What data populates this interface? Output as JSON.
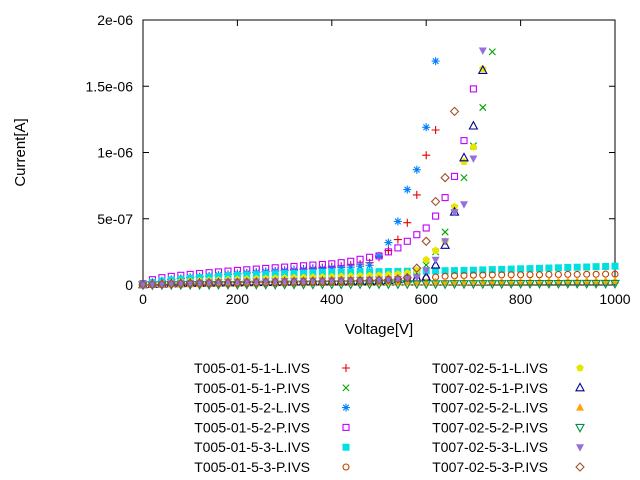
{
  "window": {
    "background": "#ffffff"
  },
  "chart_data": {
    "type": "scatter",
    "title": "",
    "xlabel": "Voltage[V]",
    "ylabel": "Current[A]",
    "xlim": [
      0,
      1000
    ],
    "ylim_amps": [
      0,
      2e-06
    ],
    "x_ticks": [
      0,
      200,
      400,
      600,
      800,
      1000
    ],
    "y_ticks": [
      {
        "v": 0,
        "label": "0"
      },
      {
        "v": 0.5,
        "label": "5e-07"
      },
      {
        "v": 1,
        "label": "1e-06"
      },
      {
        "v": 1.5,
        "label": "1.5e-06"
      },
      {
        "v": 2,
        "label": "2e-06"
      }
    ],
    "grid": false,
    "legend_position": "below plot, two columns",
    "current_values_unit": "microamps (multiply by 1e-6 for A)",
    "series": [
      {
        "name": "T005-01-5-1-L.IVS",
        "color": "#e60000",
        "marker": "plus",
        "v_start": 0,
        "v_step": 20,
        "i_microamps": [
          0.005,
          0.02,
          0.03,
          0.04,
          0.048,
          0.055,
          0.062,
          0.068,
          0.074,
          0.08,
          0.086,
          0.091,
          0.096,
          0.101,
          0.106,
          0.111,
          0.116,
          0.121,
          0.126,
          0.131,
          0.137,
          0.143,
          0.15,
          0.158,
          0.168,
          0.21,
          0.26,
          0.343,
          0.47,
          0.68,
          0.98,
          1.17
        ]
      },
      {
        "name": "T005-01-5-1-P.IVS",
        "color": "#00a400",
        "marker": "cross",
        "v_start": 0,
        "v_step": 20,
        "i_microamps": [
          0.002,
          0.004,
          0.006,
          0.008,
          0.01,
          0.012,
          0.014,
          0.016,
          0.018,
          0.02,
          0.021,
          0.022,
          0.023,
          0.024,
          0.025,
          0.026,
          0.027,
          0.028,
          0.029,
          0.03,
          0.032,
          0.034,
          0.036,
          0.038,
          0.04,
          0.045,
          0.055,
          0.065,
          0.075,
          0.09,
          0.15,
          0.25,
          0.4,
          0.58,
          0.81,
          1.05,
          1.34,
          1.76
        ]
      },
      {
        "name": "T005-01-5-2-L.IVS",
        "color": "#0080ff",
        "marker": "asterisk",
        "v_start": 0,
        "v_step": 20,
        "i_microamps": [
          0.005,
          0.02,
          0.032,
          0.042,
          0.05,
          0.057,
          0.063,
          0.069,
          0.075,
          0.08,
          0.085,
          0.09,
          0.095,
          0.1,
          0.104,
          0.108,
          0.112,
          0.116,
          0.12,
          0.124,
          0.128,
          0.131,
          0.134,
          0.142,
          0.149,
          0.22,
          0.32,
          0.48,
          0.72,
          0.87,
          1.19,
          1.69
        ]
      },
      {
        "name": "T005-01-5-2-P.IVS",
        "color": "#c000ff",
        "marker": "open-square",
        "v_start": 0,
        "v_step": 20,
        "i_microamps": [
          0.01,
          0.04,
          0.055,
          0.065,
          0.073,
          0.08,
          0.087,
          0.093,
          0.099,
          0.105,
          0.11,
          0.115,
          0.12,
          0.125,
          0.13,
          0.135,
          0.14,
          0.145,
          0.15,
          0.155,
          0.16,
          0.168,
          0.179,
          0.194,
          0.209,
          0.22,
          0.25,
          0.28,
          0.33,
          0.38,
          0.43,
          0.52,
          0.66,
          0.82,
          1.09,
          1.48
        ]
      },
      {
        "name": "T005-01-5-3-L.IVS",
        "color": "#00e0e0",
        "marker": "filled-square",
        "v_start": 0,
        "v_step": 20,
        "i_microamps": [
          0.005,
          0.02,
          0.03,
          0.038,
          0.044,
          0.05,
          0.055,
          0.06,
          0.064,
          0.068,
          0.072,
          0.075,
          0.078,
          0.081,
          0.084,
          0.086,
          0.088,
          0.09,
          0.092,
          0.094,
          0.096,
          0.097,
          0.098,
          0.099,
          0.1,
          0.101,
          0.102,
          0.103,
          0.104,
          0.105,
          0.106,
          0.107,
          0.108,
          0.109,
          0.11,
          0.112,
          0.114,
          0.116,
          0.118,
          0.12,
          0.122,
          0.124,
          0.126,
          0.128,
          0.13,
          0.132,
          0.134,
          0.136,
          0.138,
          0.14,
          0.142
        ]
      },
      {
        "name": "T005-01-5-3-P.IVS",
        "color": "#c04000",
        "marker": "open-circle",
        "v_start": 0,
        "v_step": 20,
        "i_microamps": [
          0.002,
          0.004,
          0.006,
          0.008,
          0.01,
          0.011,
          0.012,
          0.013,
          0.014,
          0.015,
          0.016,
          0.017,
          0.018,
          0.019,
          0.02,
          0.021,
          0.022,
          0.023,
          0.024,
          0.025,
          0.026,
          0.027,
          0.028,
          0.029,
          0.03,
          0.032,
          0.034,
          0.037,
          0.04,
          0.045,
          0.052,
          0.06,
          0.066,
          0.07,
          0.072,
          0.074,
          0.075,
          0.076,
          0.076,
          0.077,
          0.077,
          0.078,
          0.078,
          0.079,
          0.079,
          0.08,
          0.08,
          0.081,
          0.081,
          0.082,
          0.082
        ]
      },
      {
        "name": "T007-02-5-1-L.IVS",
        "color": "#e6e600",
        "marker": "filled-pentagon",
        "v_start": 0,
        "v_step": 20,
        "i_microamps": [
          0.005,
          0.01,
          0.015,
          0.02,
          0.024,
          0.028,
          0.031,
          0.034,
          0.037,
          0.04,
          0.042,
          0.044,
          0.046,
          0.048,
          0.05,
          0.052,
          0.054,
          0.056,
          0.058,
          0.06,
          0.062,
          0.064,
          0.066,
          0.068,
          0.07,
          0.073,
          0.077,
          0.082,
          0.09,
          0.11,
          0.19,
          0.26,
          0.33,
          0.59,
          0.93,
          1.04,
          1.63
        ]
      },
      {
        "name": "T007-02-5-1-P.IVS",
        "color": "#000090",
        "marker": "open-triangle-up",
        "v_start": 0,
        "v_step": 20,
        "i_microamps": [
          0.002,
          0.004,
          0.006,
          0.008,
          0.01,
          0.011,
          0.012,
          0.013,
          0.014,
          0.015,
          0.016,
          0.017,
          0.018,
          0.019,
          0.02,
          0.021,
          0.022,
          0.023,
          0.024,
          0.025,
          0.026,
          0.027,
          0.028,
          0.029,
          0.03,
          0.032,
          0.035,
          0.04,
          0.045,
          0.052,
          0.06,
          0.15,
          0.3,
          0.55,
          0.96,
          1.2,
          1.62
        ]
      },
      {
        "name": "T007-02-5-2-L.IVS",
        "color": "#ffa500",
        "marker": "filled-triangle-up",
        "v_start": 0,
        "v_step": 20,
        "i_microamps": [
          0.001,
          0.002,
          0.003,
          0.004,
          0.005,
          0.006,
          0.007,
          0.008,
          0.009,
          0.01,
          0.01,
          0.011,
          0.011,
          0.012,
          0.012,
          0.013,
          0.013,
          0.014,
          0.014,
          0.015,
          0.015,
          0.016,
          0.016,
          0.017,
          0.017,
          0.018,
          0.018,
          0.019,
          0.019,
          0.02,
          0.02,
          0.021,
          0.021,
          0.022,
          0.022,
          0.023,
          0.023,
          0.024,
          0.024,
          0.025,
          0.025,
          0.026,
          0.026,
          0.027,
          0.027,
          0.028,
          0.028,
          0.029,
          0.029,
          0.03,
          0.03
        ]
      },
      {
        "name": "T007-02-5-2-P.IVS",
        "color": "#009048",
        "marker": "open-triangle-down",
        "v_start": 0,
        "v_step": 20,
        "i_microamps": [
          0.001,
          0.001,
          0.002,
          0.002,
          0.002,
          0.003,
          0.003,
          0.003,
          0.004,
          0.004,
          0.004,
          0.005,
          0.005,
          0.005,
          0.005,
          0.006,
          0.006,
          0.006,
          0.006,
          0.007,
          0.007,
          0.007,
          0.007,
          0.008,
          0.008,
          0.008,
          0.008,
          0.008,
          0.009,
          0.009,
          0.009,
          0.009,
          0.009,
          0.01,
          0.01,
          0.01,
          0.01,
          0.01,
          0.01,
          0.011,
          0.011,
          0.011,
          0.011,
          0.011,
          0.011,
          0.012,
          0.012,
          0.012,
          0.012,
          0.012,
          0.012
        ]
      },
      {
        "name": "T007-02-5-3-L.IVS",
        "color": "#9370db",
        "marker": "filled-triangle-down",
        "v_start": 0,
        "v_step": 20,
        "i_microamps": [
          0.003,
          0.006,
          0.009,
          0.012,
          0.014,
          0.016,
          0.018,
          0.02,
          0.022,
          0.024,
          0.025,
          0.026,
          0.027,
          0.028,
          0.029,
          0.03,
          0.031,
          0.032,
          0.033,
          0.034,
          0.035,
          0.036,
          0.037,
          0.038,
          0.039,
          0.04,
          0.042,
          0.045,
          0.05,
          0.06,
          0.112,
          0.19,
          0.33,
          0.55,
          0.61,
          0.955,
          1.77
        ]
      },
      {
        "name": "T007-02-5-3-P.IVS",
        "color": "#a0522d",
        "marker": "open-diamond",
        "v_start": 0,
        "v_step": 20,
        "i_microamps": [
          0.002,
          0.004,
          0.006,
          0.008,
          0.01,
          0.012,
          0.013,
          0.014,
          0.015,
          0.016,
          0.017,
          0.018,
          0.019,
          0.02,
          0.021,
          0.022,
          0.023,
          0.024,
          0.025,
          0.026,
          0.027,
          0.028,
          0.03,
          0.032,
          0.034,
          0.037,
          0.04,
          0.045,
          0.055,
          0.127,
          0.33,
          0.63,
          0.81,
          1.31
        ]
      }
    ]
  },
  "legend": {
    "left_column": [
      "T005-01-5-1-L.IVS",
      "T005-01-5-1-P.IVS",
      "T005-01-5-2-L.IVS",
      "T005-01-5-2-P.IVS",
      "T005-01-5-3-L.IVS",
      "T005-01-5-3-P.IVS"
    ],
    "right_column": [
      "T007-02-5-1-L.IVS",
      "T007-02-5-1-P.IVS",
      "T007-02-5-2-L.IVS",
      "T007-02-5-2-P.IVS",
      "T007-02-5-3-L.IVS",
      "T007-02-5-3-P.IVS"
    ]
  }
}
